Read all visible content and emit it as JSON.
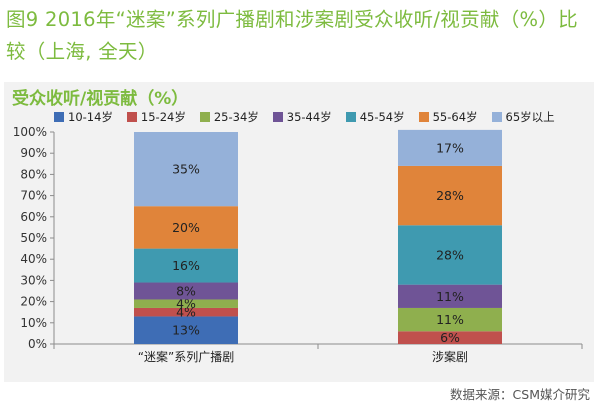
{
  "figure_title": "图9 2016年“迷案”系列广播剧和涉案剧受众收听/视贡献（%）比较（上海, 全天）",
  "source": "数据来源：CSM媒介研究",
  "chart_data": {
    "type": "bar",
    "stacked": true,
    "title": "受众收听/视贡献（%）",
    "categories": [
      "“迷案”系列广播剧",
      "涉案剧"
    ],
    "y_tick_labels": [
      "0%",
      "10%",
      "20%",
      "30%",
      "40%",
      "50%",
      "60%",
      "70%",
      "80%",
      "90%",
      "100%"
    ],
    "ylim": [
      0,
      100
    ],
    "grid": false,
    "legend_position": "top",
    "series": [
      {
        "name": "10-14岁",
        "color": "#3e6db5",
        "values": [
          13,
          0
        ],
        "labels": [
          "13%",
          ""
        ]
      },
      {
        "name": "15-24岁",
        "color": "#c0504d",
        "values": [
          4,
          6
        ],
        "labels": [
          "4%",
          "6%"
        ]
      },
      {
        "name": "25-34岁",
        "color": "#8faf4e",
        "values": [
          4,
          11
        ],
        "labels": [
          "4%",
          "11%"
        ]
      },
      {
        "name": "35-44岁",
        "color": "#6f5496",
        "values": [
          8,
          11
        ],
        "labels": [
          "8%",
          "11%"
        ]
      },
      {
        "name": "45-54岁",
        "color": "#3f9ab0",
        "values": [
          16,
          28
        ],
        "labels": [
          "16%",
          "28%"
        ]
      },
      {
        "name": "55-64岁",
        "color": "#e0843a",
        "values": [
          20,
          28
        ],
        "labels": [
          "20%",
          "28%"
        ]
      },
      {
        "name": "65岁以上",
        "color": "#95b1d9",
        "values": [
          35,
          17
        ],
        "labels": [
          "35%",
          "17%"
        ]
      }
    ]
  }
}
